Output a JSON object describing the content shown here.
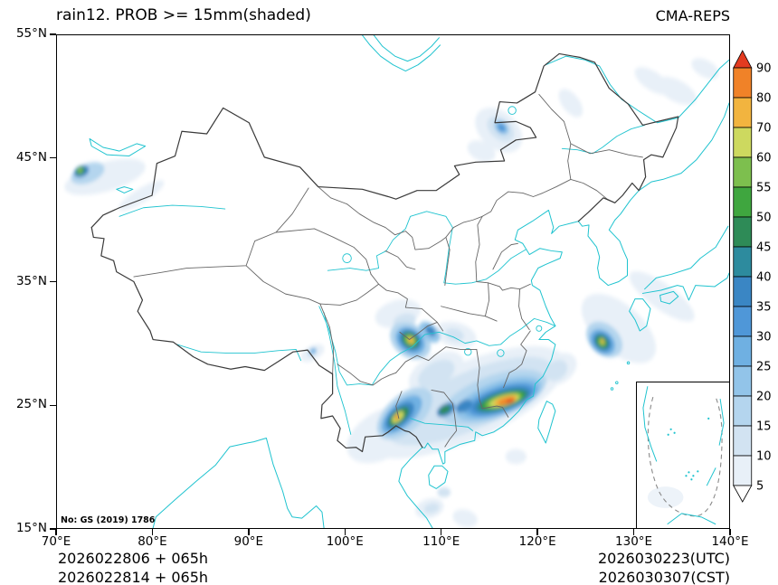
{
  "header": {
    "title": "rain12. PROB >= 15mm(shaded)",
    "model": "CMA-REPS"
  },
  "map": {
    "watermark": "No: GS (2019) 1786"
  },
  "axes": {
    "lon_range": [
      70,
      140
    ],
    "lat_range": [
      15,
      55
    ],
    "x_ticks": [
      {
        "value": 70,
        "label": "70°E"
      },
      {
        "value": 80,
        "label": "80°E"
      },
      {
        "value": 90,
        "label": "90°E"
      },
      {
        "value": 100,
        "label": "100°E"
      },
      {
        "value": 110,
        "label": "110°E"
      },
      {
        "value": 120,
        "label": "120°E"
      },
      {
        "value": 130,
        "label": "130°E"
      },
      {
        "value": 140,
        "label": "140°E"
      }
    ],
    "y_ticks": [
      {
        "value": 15,
        "label": "15°N"
      },
      {
        "value": 25,
        "label": "25°N"
      },
      {
        "value": 35,
        "label": "35°N"
      },
      {
        "value": 45,
        "label": "45°N"
      },
      {
        "value": 55,
        "label": "55°N"
      }
    ]
  },
  "colorbar": {
    "levels": [
      5,
      10,
      15,
      20,
      25,
      30,
      35,
      40,
      45,
      50,
      55,
      60,
      70,
      80,
      90
    ],
    "colors": [
      "#ffffff",
      "#e8f0f8",
      "#d2e3f2",
      "#b4d5ee",
      "#92c4e9",
      "#6fb0e2",
      "#4f97d8",
      "#3a86c4",
      "#2d8b9e",
      "#2e8b57",
      "#3fa63f",
      "#7dbf4e",
      "#cdd95f",
      "#f2b43f",
      "#f08228",
      "#e33b20"
    ]
  },
  "footer": {
    "left_line1": "2026022806 + 065h",
    "left_line2": "2026022814 + 065h",
    "right_line1": "2026030223(UTC)",
    "right_line2": "2026030307(CST)"
  },
  "chart_data": {
    "type": "heatmap",
    "title": "rain12. PROB >= 15mm(shaded)",
    "model": "CMA-REPS",
    "variable": "probability of 12h accumulated precipitation >= 15mm",
    "units": "%",
    "xlabel": "longitude",
    "ylabel": "latitude",
    "xlim": [
      70,
      140
    ],
    "ylim": [
      15,
      55
    ],
    "legend_position": "right",
    "levels": [
      5,
      10,
      15,
      20,
      25,
      30,
      35,
      40,
      45,
      50,
      55,
      60,
      70,
      80,
      90
    ],
    "shaded_regions": [
      {
        "p": 5,
        "lon": 112.5,
        "lat": 25.2,
        "rx": 11.0,
        "ry": 3.2,
        "rot": -18
      },
      {
        "p": 5,
        "lon": 104.0,
        "lat": 22.6,
        "rx": 4.0,
        "ry": 2.0,
        "rot": -20
      },
      {
        "p": 5,
        "lon": 109.5,
        "lat": 27.6,
        "rx": 3.0,
        "ry": 1.5,
        "rot": -20
      },
      {
        "p": 5,
        "lon": 105.5,
        "lat": 32.4,
        "rx": 2.4,
        "ry": 1.1,
        "rot": -10
      },
      {
        "p": 5,
        "lon": 111.5,
        "lat": 30.7,
        "rx": 2.2,
        "ry": 1.0,
        "rot": 10
      },
      {
        "p": 5,
        "lon": 96.6,
        "lat": 29.2,
        "rx": 1.3,
        "ry": 0.6,
        "rot": -20
      },
      {
        "p": 5,
        "lon": 75.0,
        "lat": 43.5,
        "rx": 4.3,
        "ry": 1.2,
        "rot": -12
      },
      {
        "p": 5,
        "lon": 78.8,
        "lat": 42.0,
        "rx": 2.6,
        "ry": 0.6,
        "rot": -25
      },
      {
        "p": 5,
        "lon": 116.0,
        "lat": 47.3,
        "rx": 2.6,
        "ry": 1.6,
        "rot": 25
      },
      {
        "p": 5,
        "lon": 114.2,
        "lat": 45.6,
        "rx": 1.5,
        "ry": 0.8,
        "rot": 15
      },
      {
        "p": 5,
        "lon": 128.5,
        "lat": 31.2,
        "rx": 4.3,
        "ry": 2.1,
        "rot": 30
      },
      {
        "p": 5,
        "lon": 133.0,
        "lat": 33.8,
        "rx": 3.8,
        "ry": 1.1,
        "rot": 28
      },
      {
        "p": 5,
        "lon": 122.2,
        "lat": 27.9,
        "rx": 2.0,
        "ry": 1.2,
        "rot": -20
      },
      {
        "p": 5,
        "lon": 108.8,
        "lat": 16.6,
        "rx": 1.5,
        "ry": 0.8,
        "rot": -10
      },
      {
        "p": 5,
        "lon": 112.5,
        "lat": 15.8,
        "rx": 1.3,
        "ry": 0.7,
        "rot": 10
      },
      {
        "p": 5,
        "lon": 117.8,
        "lat": 20.8,
        "rx": 1.1,
        "ry": 0.6,
        "rot": 0
      },
      {
        "p": 5,
        "lon": 134.5,
        "lat": 50.5,
        "rx": 2.2,
        "ry": 0.9,
        "rot": 20
      },
      {
        "p": 5,
        "lon": 137.5,
        "lat": 52.3,
        "rx": 1.5,
        "ry": 0.7,
        "rot": 20
      },
      {
        "p": 5,
        "lon": 123.5,
        "lat": 49.5,
        "rx": 1.5,
        "ry": 0.8,
        "rot": 40
      },
      {
        "p": 5,
        "lon": 132.0,
        "lat": 51.3,
        "rx": 2.0,
        "ry": 0.8,
        "rot": 25
      },
      {
        "p": 10,
        "lon": 113.0,
        "lat": 25.3,
        "rx": 9.0,
        "ry": 2.4,
        "rot": -18
      },
      {
        "p": 10,
        "lon": 106.2,
        "lat": 31.8,
        "rx": 1.2,
        "ry": 0.6,
        "rot": -10
      },
      {
        "p": 10,
        "lon": 109.5,
        "lat": 27.5,
        "rx": 2.0,
        "ry": 1.0,
        "rot": -20
      },
      {
        "p": 10,
        "lon": 116.2,
        "lat": 47.4,
        "rx": 1.5,
        "ry": 0.9,
        "rot": 25
      },
      {
        "p": 10,
        "lon": 109.0,
        "lat": 16.6,
        "rx": 0.8,
        "ry": 0.4,
        "rot": -10
      },
      {
        "p": 10,
        "lon": 110.3,
        "lat": 17.9,
        "rx": 0.7,
        "ry": 0.4,
        "rot": 0
      },
      {
        "p": 10,
        "lon": 122.0,
        "lat": 27.8,
        "rx": 1.2,
        "ry": 0.8,
        "rot": -20
      },
      {
        "p": 10,
        "lon": 111.4,
        "lat": 30.7,
        "rx": 1.0,
        "ry": 0.5,
        "rot": 10
      },
      {
        "p": 15,
        "lon": 115.5,
        "lat": 25.6,
        "rx": 5.6,
        "ry": 1.8,
        "rot": -15
      },
      {
        "p": 15,
        "lon": 106.2,
        "lat": 24.3,
        "rx": 3.2,
        "ry": 1.6,
        "rot": -30
      },
      {
        "p": 15,
        "lon": 106.8,
        "lat": 30.2,
        "rx": 2.2,
        "ry": 1.4,
        "rot": 20
      },
      {
        "p": 15,
        "lon": 73.2,
        "lat": 43.8,
        "rx": 1.8,
        "ry": 0.8,
        "rot": -15
      },
      {
        "p": 15,
        "lon": 127.0,
        "lat": 30.3,
        "rx": 2.0,
        "ry": 1.3,
        "rot": 25
      },
      {
        "p": 15,
        "lon": 96.6,
        "lat": 29.3,
        "rx": 0.5,
        "ry": 0.3,
        "rot": -20
      },
      {
        "p": 20,
        "lon": 116.0,
        "lat": 25.5,
        "rx": 4.6,
        "ry": 1.4,
        "rot": -15
      },
      {
        "p": 20,
        "lon": 108.8,
        "lat": 30.9,
        "rx": 1.2,
        "ry": 0.7,
        "rot": 30
      },
      {
        "p": 20,
        "lon": 116.3,
        "lat": 47.5,
        "rx": 0.8,
        "ry": 0.5,
        "rot": 25
      },
      {
        "p": 25,
        "lon": 116.2,
        "lat": 25.45,
        "rx": 4.0,
        "ry": 1.15,
        "rot": -14
      },
      {
        "p": 25,
        "lon": 105.9,
        "lat": 24.2,
        "rx": 2.4,
        "ry": 1.1,
        "rot": -32
      },
      {
        "p": 25,
        "lon": 106.8,
        "lat": 30.2,
        "rx": 1.6,
        "ry": 1.05,
        "rot": 20
      },
      {
        "p": 25,
        "lon": 126.8,
        "lat": 30.1,
        "rx": 1.4,
        "ry": 0.95,
        "rot": 25
      },
      {
        "p": 25,
        "lon": 96.7,
        "lat": 29.4,
        "rx": 0.3,
        "ry": 0.2,
        "rot": 0
      },
      {
        "p": 30,
        "lon": 116.3,
        "lat": 25.4,
        "rx": 3.5,
        "ry": 1.0,
        "rot": -14
      },
      {
        "p": 30,
        "lon": 116.3,
        "lat": 47.5,
        "rx": 0.45,
        "ry": 0.3,
        "rot": 25
      },
      {
        "p": 35,
        "lon": 116.3,
        "lat": 25.4,
        "rx": 3.1,
        "ry": 0.85,
        "rot": -13
      },
      {
        "p": 35,
        "lon": 105.7,
        "lat": 24.1,
        "rx": 1.7,
        "ry": 0.8,
        "rot": -32
      },
      {
        "p": 35,
        "lon": 106.8,
        "lat": 30.25,
        "rx": 1.2,
        "ry": 0.8,
        "rot": 20
      },
      {
        "p": 35,
        "lon": 126.8,
        "lat": 30.1,
        "rx": 1.0,
        "ry": 0.7,
        "rot": 25
      },
      {
        "p": 35,
        "lon": 108.9,
        "lat": 31.0,
        "rx": 0.6,
        "ry": 0.35,
        "rot": 30
      },
      {
        "p": 35,
        "lon": 72.55,
        "lat": 43.95,
        "rx": 0.8,
        "ry": 0.45,
        "rot": -15
      },
      {
        "p": 35,
        "lon": 110.5,
        "lat": 24.6,
        "rx": 1.0,
        "ry": 0.5,
        "rot": -20
      },
      {
        "p": 35,
        "lon": 112.4,
        "lat": 24.9,
        "rx": 0.9,
        "ry": 0.45,
        "rot": -20
      },
      {
        "p": 40,
        "lon": 116.4,
        "lat": 25.35,
        "rx": 2.8,
        "ry": 0.72,
        "rot": -13
      },
      {
        "p": 45,
        "lon": 116.4,
        "lat": 25.35,
        "rx": 2.5,
        "ry": 0.62,
        "rot": -13
      },
      {
        "p": 45,
        "lon": 105.6,
        "lat": 24.05,
        "rx": 1.2,
        "ry": 0.55,
        "rot": -32
      },
      {
        "p": 45,
        "lon": 106.8,
        "lat": 30.25,
        "rx": 0.9,
        "ry": 0.6,
        "rot": 20
      },
      {
        "p": 45,
        "lon": 126.75,
        "lat": 30.1,
        "rx": 0.7,
        "ry": 0.5,
        "rot": 25
      },
      {
        "p": 45,
        "lon": 72.45,
        "lat": 44.0,
        "rx": 0.5,
        "ry": 0.3,
        "rot": -15
      },
      {
        "p": 45,
        "lon": 110.4,
        "lat": 24.6,
        "rx": 0.6,
        "ry": 0.3,
        "rot": -20
      },
      {
        "p": 50,
        "lon": 116.5,
        "lat": 25.35,
        "rx": 2.2,
        "ry": 0.52,
        "rot": -12
      },
      {
        "p": 55,
        "lon": 116.5,
        "lat": 25.35,
        "rx": 1.9,
        "ry": 0.45,
        "rot": -12
      },
      {
        "p": 55,
        "lon": 106.8,
        "lat": 30.25,
        "rx": 0.6,
        "ry": 0.4,
        "rot": 20
      },
      {
        "p": 55,
        "lon": 126.75,
        "lat": 30.1,
        "rx": 0.4,
        "ry": 0.3,
        "rot": 25
      },
      {
        "p": 55,
        "lon": 72.4,
        "lat": 44.0,
        "rx": 0.3,
        "ry": 0.18,
        "rot": -15
      },
      {
        "p": 60,
        "lon": 116.6,
        "lat": 25.35,
        "rx": 1.6,
        "ry": 0.4,
        "rot": -12
      },
      {
        "p": 60,
        "lon": 105.5,
        "lat": 24.0,
        "rx": 0.7,
        "ry": 0.35,
        "rot": -32
      },
      {
        "p": 70,
        "lon": 116.7,
        "lat": 25.35,
        "rx": 1.25,
        "ry": 0.33,
        "rot": -12
      },
      {
        "p": 70,
        "lon": 106.85,
        "lat": 30.25,
        "rx": 0.35,
        "ry": 0.22,
        "rot": 20
      },
      {
        "p": 70,
        "lon": 126.8,
        "lat": 30.15,
        "rx": 0.2,
        "ry": 0.14,
        "rot": 25
      },
      {
        "p": 80,
        "lon": 116.8,
        "lat": 25.3,
        "rx": 0.9,
        "ry": 0.26,
        "rot": -12
      },
      {
        "p": 80,
        "lon": 105.4,
        "lat": 24.0,
        "rx": 0.28,
        "ry": 0.16,
        "rot": -32
      },
      {
        "p": 90,
        "lon": 117.2,
        "lat": 25.3,
        "rx": 0.45,
        "ry": 0.15,
        "rot": -12
      }
    ]
  }
}
